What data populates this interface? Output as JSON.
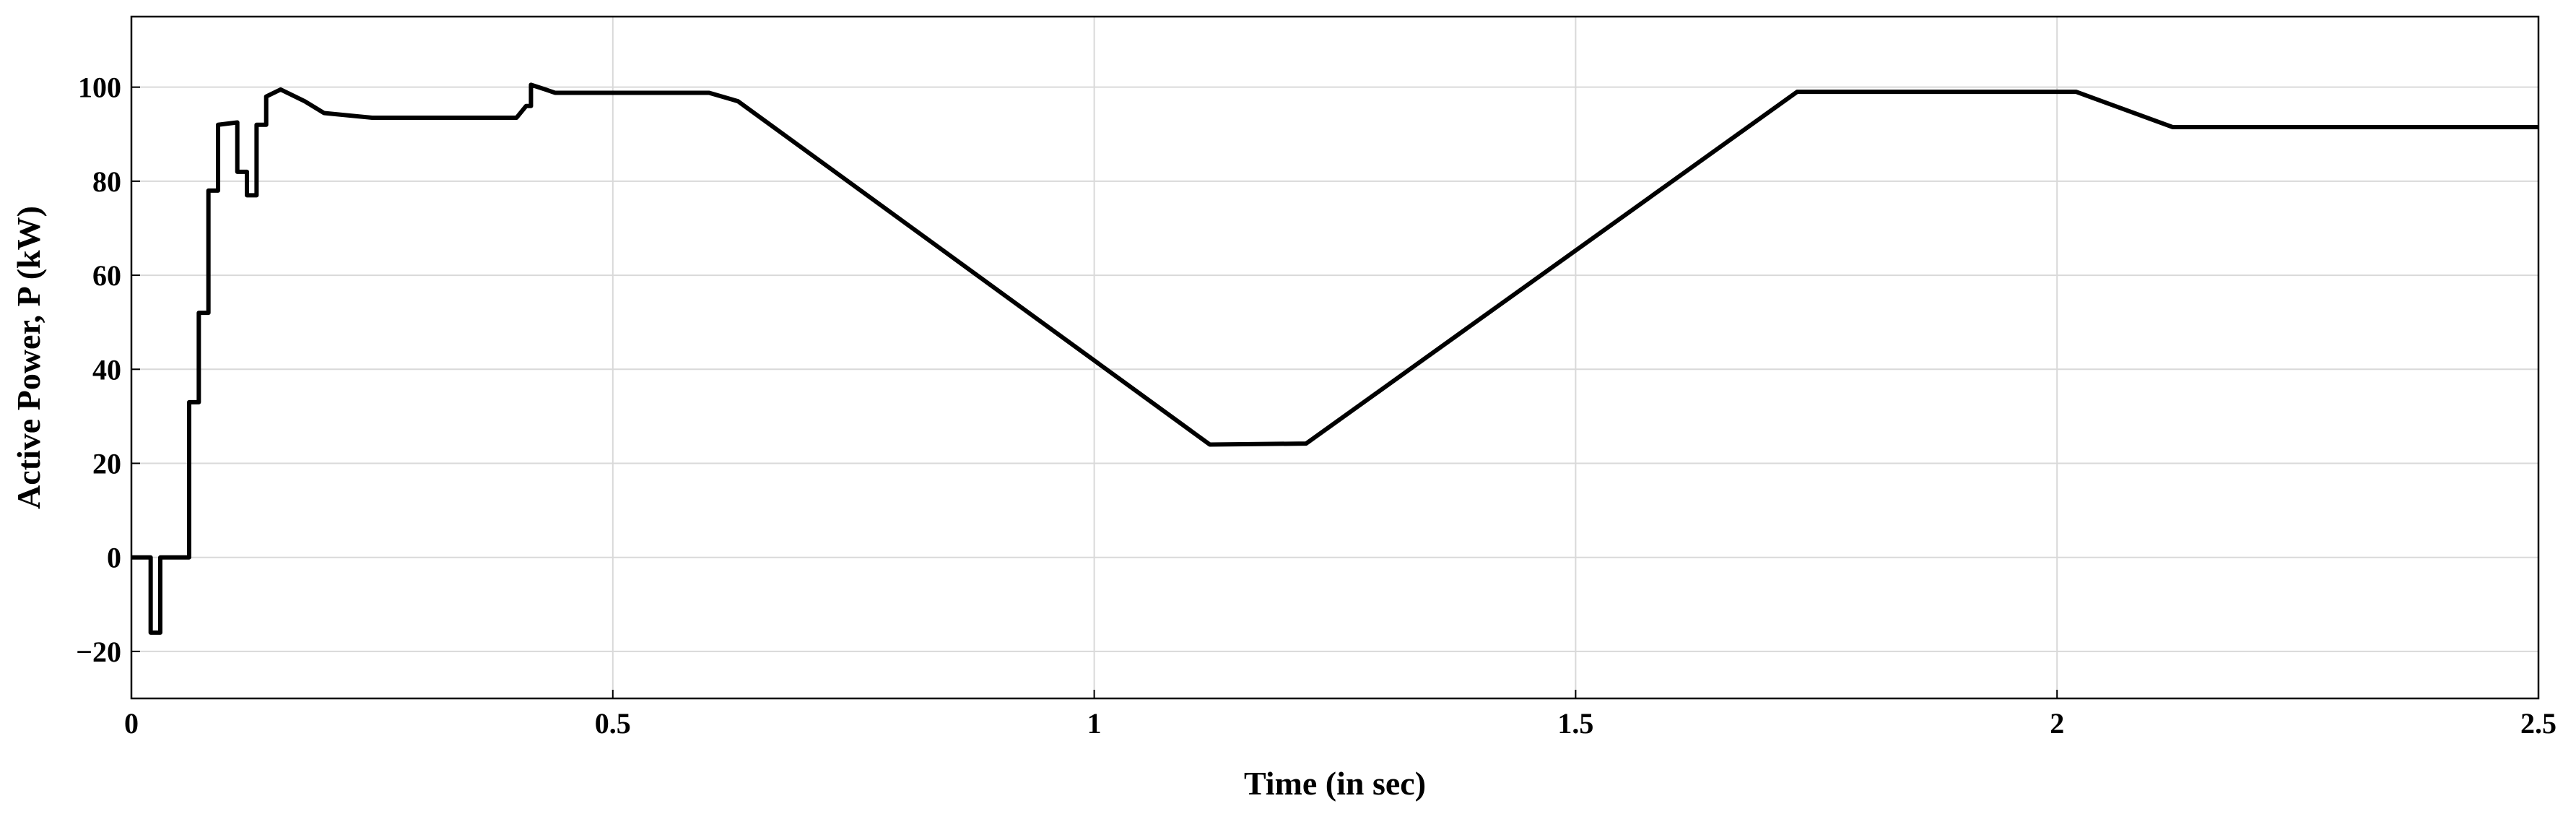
{
  "chart_data": {
    "type": "line",
    "xlabel": "Time (in sec)",
    "ylabel": "Active Power, P (kW)",
    "x": [
      0,
      0.02,
      0.02,
      0.03,
      0.03,
      0.06,
      0.06,
      0.07,
      0.07,
      0.08,
      0.08,
      0.09,
      0.09,
      0.11,
      0.11,
      0.12,
      0.12,
      0.13,
      0.13,
      0.14,
      0.14,
      0.155,
      0.18,
      0.2,
      0.25,
      0.4,
      0.41,
      0.415,
      0.415,
      0.43,
      0.44,
      0.6,
      0.63,
      1.12,
      1.22,
      1.73,
      2.02,
      2.12,
      2.5
    ],
    "series": [
      {
        "color": "#000000",
        "values": [
          0,
          0,
          -16,
          -16,
          0,
          0,
          33,
          33,
          52,
          52,
          78,
          78,
          92,
          92.5,
          82,
          82,
          77,
          77,
          92,
          92,
          98,
          99.5,
          97,
          94.5,
          93.5,
          93.5,
          96,
          96,
          100.5,
          99.5,
          98.8,
          98.8,
          97,
          24,
          24.2,
          99,
          99,
          91.5,
          91.5
        ]
      }
    ],
    "xlim": [
      0,
      2.5
    ],
    "xticks": [
      0,
      0.5,
      1,
      1.5,
      2,
      2.5
    ],
    "ylim": [
      -30,
      115
    ],
    "yticks": [
      {
        "value": -20,
        "label": "−20"
      },
      0,
      20,
      40,
      60,
      80,
      100
    ],
    "grid": true
  }
}
